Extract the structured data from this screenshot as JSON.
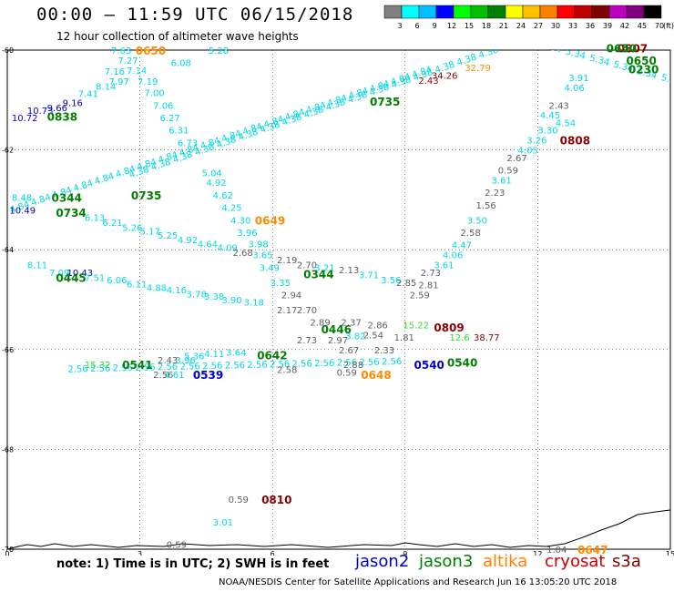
{
  "header": {
    "title": "00:00 – 11:59 UTC 06/15/2018",
    "subtitle": "12 hour collection of altimeter wave heights"
  },
  "legend": {
    "unit_label": "(ft)",
    "bins": [
      {
        "label": "3",
        "color": "#808080"
      },
      {
        "label": "6",
        "color": "#00ffff"
      },
      {
        "label": "9",
        "color": "#00c0ff"
      },
      {
        "label": "12",
        "color": "#0000ff"
      },
      {
        "label": "15",
        "color": "#00ff00"
      },
      {
        "label": "18",
        "color": "#00c000"
      },
      {
        "label": "21",
        "color": "#008000"
      },
      {
        "label": "24",
        "color": "#ffff00"
      },
      {
        "label": "27",
        "color": "#ffc000"
      },
      {
        "label": "30",
        "color": "#ff8000"
      },
      {
        "label": "33",
        "color": "#ff0000"
      },
      {
        "label": "36",
        "color": "#c00000"
      },
      {
        "label": "39",
        "color": "#800000"
      },
      {
        "label": "42",
        "color": "#c000c0"
      },
      {
        "label": "45",
        "color": "#800080"
      },
      {
        "label": "70",
        "color": "#000000"
      }
    ]
  },
  "axes": {
    "lon_ticks": [
      "0",
      "3",
      "6",
      "9",
      "12",
      "15"
    ],
    "lat_ticks": [
      "-60",
      "-62",
      "-64",
      "-66",
      "-68",
      "-70"
    ]
  },
  "note": "note:  1) Time is in UTC;  2) SWH is in feet",
  "satellites": [
    {
      "name": "jason2",
      "color": "#0000cc"
    },
    {
      "name": "jason3",
      "color": "#008000"
    },
    {
      "name": "altika",
      "color": "#ff8000"
    },
    {
      "name": "cryosat",
      "color": "#cc0000"
    },
    {
      "name": "s3a",
      "color": "#800000"
    }
  ],
  "credit": "NOAA/NESDIS Center for Satellite Applications and Research    Jun 16 13:05:20 UTC 2018",
  "map_data": {
    "colors": {
      "cyan": "#00d8e8",
      "gray": "#606060",
      "blue": "#0000cc",
      "green": "#008000",
      "orange": "#ff8c00",
      "darkred": "#8b0000",
      "lime": "#33dd33"
    },
    "passes": [
      {
        "text": "0650",
        "lon": 2.9,
        "lat": -60.0,
        "color": "orange"
      },
      {
        "text": "0838",
        "lon": 0.9,
        "lat": -61.32,
        "color": "green"
      },
      {
        "text": "0735",
        "lon": 8.2,
        "lat": -61.02,
        "color": "green"
      },
      {
        "text": "0735",
        "lon": 2.8,
        "lat": -62.9,
        "color": "green"
      },
      {
        "text": "0344",
        "lon": 1.0,
        "lat": -62.95,
        "color": "green"
      },
      {
        "text": "0734",
        "lon": 1.1,
        "lat": -63.25,
        "color": "green"
      },
      {
        "text": "0649",
        "lon": 5.6,
        "lat": -63.4,
        "color": "orange"
      },
      {
        "text": "0445",
        "lon": 1.1,
        "lat": -64.55,
        "color": "green"
      },
      {
        "text": "0344",
        "lon": 6.7,
        "lat": -64.48,
        "color": "green"
      },
      {
        "text": "0446",
        "lon": 7.1,
        "lat": -65.58,
        "color": "green"
      },
      {
        "text": "0809",
        "lon": 9.65,
        "lat": -65.55,
        "color": "darkred"
      },
      {
        "text": "0642",
        "lon": 5.65,
        "lat": -66.1,
        "color": "green"
      },
      {
        "text": "0541",
        "lon": 2.6,
        "lat": -66.3,
        "color": "green"
      },
      {
        "text": "0539",
        "lon": 4.2,
        "lat": -66.5,
        "color": "blue"
      },
      {
        "text": "0540",
        "lon": 9.2,
        "lat": -66.3,
        "color": "blue"
      },
      {
        "text": "0540",
        "lon": 9.95,
        "lat": -66.25,
        "color": "green"
      },
      {
        "text": "0648",
        "lon": 8.0,
        "lat": -66.5,
        "color": "orange"
      },
      {
        "text": "0810",
        "lon": 5.75,
        "lat": -69.0,
        "color": "darkred"
      },
      {
        "text": "0647",
        "lon": 12.9,
        "lat": -70.0,
        "color": "orange"
      },
      {
        "text": "0808",
        "lon": 12.5,
        "lat": -61.8,
        "color": "darkred"
      },
      {
        "text": "0807",
        "lon": 13.8,
        "lat": -59.95,
        "color": "darkred"
      },
      {
        "text": "0650",
        "lon": 13.55,
        "lat": -59.95,
        "color": "green"
      },
      {
        "text": "0650",
        "lon": 14.0,
        "lat": -60.2,
        "color": "green"
      },
      {
        "text": "0230",
        "lon": 14.05,
        "lat": -60.37,
        "color": "green"
      }
    ],
    "values": [
      {
        "text": "7.63",
        "lon": 2.35,
        "lat": -60.0,
        "color": "cyan"
      },
      {
        "text": "7.27",
        "lon": 2.5,
        "lat": -60.2,
        "color": "cyan"
      },
      {
        "text": "7.16",
        "lon": 2.2,
        "lat": -60.42,
        "color": "cyan"
      },
      {
        "text": "7.14",
        "lon": 2.7,
        "lat": -60.4,
        "color": "cyan"
      },
      {
        "text": "8.14",
        "lon": 2.0,
        "lat": -60.72,
        "color": "cyan"
      },
      {
        "text": "7.41",
        "lon": 1.6,
        "lat": -60.87,
        "color": "cyan"
      },
      {
        "text": "7.97",
        "lon": 2.3,
        "lat": -60.62,
        "color": "cyan"
      },
      {
        "text": "7.19",
        "lon": 2.95,
        "lat": -60.62,
        "color": "cyan"
      },
      {
        "text": "7.00",
        "lon": 3.1,
        "lat": -60.85,
        "color": "cyan"
      },
      {
        "text": "7.06",
        "lon": 3.3,
        "lat": -61.1,
        "color": "cyan"
      },
      {
        "text": "6.27",
        "lon": 3.45,
        "lat": -61.35,
        "color": "cyan"
      },
      {
        "text": "6.31",
        "lon": 3.65,
        "lat": -61.6,
        "color": "cyan"
      },
      {
        "text": "6.73",
        "lon": 3.85,
        "lat": -61.85,
        "color": "cyan"
      },
      {
        "text": "6.08",
        "lon": 3.7,
        "lat": -60.25,
        "color": "cyan"
      },
      {
        "text": "5.28",
        "lon": 4.55,
        "lat": -60.0,
        "color": "cyan"
      },
      {
        "text": "9.16",
        "lon": 1.25,
        "lat": -61.05,
        "color": "blue"
      },
      {
        "text": "9.66",
        "lon": 0.9,
        "lat": -61.15,
        "color": "blue"
      },
      {
        "text": "10.73",
        "lon": 0.45,
        "lat": -61.2,
        "color": "blue"
      },
      {
        "text": "10.72",
        "lon": 0.1,
        "lat": -61.35,
        "color": "blue"
      },
      {
        "text": "8.48",
        "lon": 0.1,
        "lat": -62.95,
        "color": "cyan"
      },
      {
        "text": "10.49",
        "lon": 0.05,
        "lat": -63.2,
        "color": "blue"
      },
      {
        "text": "6.13",
        "lon": 1.75,
        "lat": -63.35,
        "color": "cyan"
      },
      {
        "text": "6.21",
        "lon": 2.15,
        "lat": -63.45,
        "color": "cyan"
      },
      {
        "text": "5.26",
        "lon": 2.6,
        "lat": -63.55,
        "color": "cyan"
      },
      {
        "text": "5.17",
        "lon": 3.0,
        "lat": -63.62,
        "color": "cyan"
      },
      {
        "text": "5.25",
        "lon": 3.4,
        "lat": -63.7,
        "color": "cyan"
      },
      {
        "text": "4.92",
        "lon": 3.85,
        "lat": -63.8,
        "color": "cyan"
      },
      {
        "text": "4.64",
        "lon": 4.3,
        "lat": -63.88,
        "color": "cyan"
      },
      {
        "text": "4.09",
        "lon": 4.75,
        "lat": -63.95,
        "color": "cyan"
      },
      {
        "text": "2.68",
        "lon": 5.1,
        "lat": -64.05,
        "color": "gray"
      },
      {
        "text": "5.04",
        "lon": 4.4,
        "lat": -62.45,
        "color": "cyan"
      },
      {
        "text": "4.92",
        "lon": 4.5,
        "lat": -62.65,
        "color": "cyan"
      },
      {
        "text": "4.62",
        "lon": 4.65,
        "lat": -62.9,
        "color": "cyan"
      },
      {
        "text": "4.25",
        "lon": 4.85,
        "lat": -63.15,
        "color": "cyan"
      },
      {
        "text": "4.30",
        "lon": 5.05,
        "lat": -63.4,
        "color": "cyan"
      },
      {
        "text": "3.96",
        "lon": 5.2,
        "lat": -63.65,
        "color": "cyan"
      },
      {
        "text": "3.98",
        "lon": 5.45,
        "lat": -63.88,
        "color": "cyan"
      },
      {
        "text": "3.65",
        "lon": 5.55,
        "lat": -64.1,
        "color": "cyan"
      },
      {
        "text": "3.49",
        "lon": 5.7,
        "lat": -64.35,
        "color": "cyan"
      },
      {
        "text": "3.35",
        "lon": 5.95,
        "lat": -64.65,
        "color": "cyan"
      },
      {
        "text": "2.19",
        "lon": 6.1,
        "lat": -64.2,
        "color": "gray"
      },
      {
        "text": "2.70",
        "lon": 6.55,
        "lat": -64.3,
        "color": "gray"
      },
      {
        "text": "3.21",
        "lon": 6.95,
        "lat": -64.35,
        "color": "cyan"
      },
      {
        "text": "2.13",
        "lon": 7.5,
        "lat": -64.4,
        "color": "gray"
      },
      {
        "text": "3.71",
        "lon": 7.95,
        "lat": -64.5,
        "color": "cyan"
      },
      {
        "text": "3.56",
        "lon": 8.45,
        "lat": -64.6,
        "color": "cyan"
      },
      {
        "text": "2.94",
        "lon": 6.2,
        "lat": -64.9,
        "color": "gray"
      },
      {
        "text": "2.17",
        "lon": 6.1,
        "lat": -65.2,
        "color": "gray"
      },
      {
        "text": "2.70",
        "lon": 6.55,
        "lat": -65.2,
        "color": "gray"
      },
      {
        "text": "2.89",
        "lon": 6.85,
        "lat": -65.45,
        "color": "gray"
      },
      {
        "text": "2.73",
        "lon": 6.55,
        "lat": -65.8,
        "color": "gray"
      },
      {
        "text": "2.97",
        "lon": 7.25,
        "lat": -65.8,
        "color": "gray"
      },
      {
        "text": "3.82",
        "lon": 7.65,
        "lat": -65.72,
        "color": "cyan"
      },
      {
        "text": "2.54",
        "lon": 8.05,
        "lat": -65.7,
        "color": "gray"
      },
      {
        "text": "2.86",
        "lon": 8.15,
        "lat": -65.5,
        "color": "gray"
      },
      {
        "text": "2.37",
        "lon": 7.55,
        "lat": -65.45,
        "color": "gray"
      },
      {
        "text": "2.67",
        "lon": 7.5,
        "lat": -66.0,
        "color": "gray"
      },
      {
        "text": "2.33",
        "lon": 8.3,
        "lat": -66.0,
        "color": "gray"
      },
      {
        "text": "0.59",
        "lon": 7.45,
        "lat": -66.45,
        "color": "gray"
      },
      {
        "text": "2.88",
        "lon": 7.6,
        "lat": -66.3,
        "color": "gray"
      },
      {
        "text": "2.85",
        "lon": 8.8,
        "lat": -64.65,
        "color": "gray"
      },
      {
        "text": "2.73",
        "lon": 9.35,
        "lat": -64.45,
        "color": "gray"
      },
      {
        "text": "2.81",
        "lon": 9.3,
        "lat": -64.7,
        "color": "gray"
      },
      {
        "text": "2.59",
        "lon": 9.1,
        "lat": -64.9,
        "color": "gray"
      },
      {
        "text": "1.81",
        "lon": 8.75,
        "lat": -65.75,
        "color": "gray"
      },
      {
        "text": "15.22",
        "lon": 8.95,
        "lat": -65.5,
        "color": "lime"
      },
      {
        "text": "12.6",
        "lon": 10.0,
        "lat": -65.75,
        "color": "lime"
      },
      {
        "text": "38.77",
        "lon": 10.55,
        "lat": -65.75,
        "color": "darkred"
      },
      {
        "text": "8.11",
        "lon": 0.45,
        "lat": -64.3,
        "color": "cyan"
      },
      {
        "text": "7.09",
        "lon": 0.95,
        "lat": -64.45,
        "color": "cyan"
      },
      {
        "text": "10.43",
        "lon": 1.35,
        "lat": -64.45,
        "color": "blue"
      },
      {
        "text": "7.51",
        "lon": 1.75,
        "lat": -64.55,
        "color": "cyan"
      },
      {
        "text": "6.06",
        "lon": 2.25,
        "lat": -64.6,
        "color": "cyan"
      },
      {
        "text": "6.11",
        "lon": 2.7,
        "lat": -64.68,
        "color": "cyan"
      },
      {
        "text": "4.88",
        "lon": 3.15,
        "lat": -64.75,
        "color": "cyan"
      },
      {
        "text": "4.16",
        "lon": 3.6,
        "lat": -64.8,
        "color": "cyan"
      },
      {
        "text": "3.78",
        "lon": 4.05,
        "lat": -64.88,
        "color": "cyan"
      },
      {
        "text": "3.38",
        "lon": 4.45,
        "lat": -64.93,
        "color": "cyan"
      },
      {
        "text": "3.90",
        "lon": 4.85,
        "lat": -65.0,
        "color": "cyan"
      },
      {
        "text": "3.18",
        "lon": 5.35,
        "lat": -65.05,
        "color": "cyan"
      },
      {
        "text": "15.32",
        "lon": 1.75,
        "lat": -66.3,
        "color": "lime"
      },
      {
        "text": "2.43",
        "lon": 3.4,
        "lat": -66.2,
        "color": "gray"
      },
      {
        "text": "5.36",
        "lon": 4.0,
        "lat": -66.12,
        "color": "cyan"
      },
      {
        "text": "4.11",
        "lon": 4.45,
        "lat": -66.08,
        "color": "cyan"
      },
      {
        "text": "3.64",
        "lon": 4.95,
        "lat": -66.05,
        "color": "cyan"
      },
      {
        "text": "2.56",
        "lon": 3.3,
        "lat": -66.5,
        "color": "gray"
      },
      {
        "text": "3.96",
        "lon": 3.8,
        "lat": -66.2,
        "color": "cyan"
      },
      {
        "text": "4.61",
        "lon": 3.55,
        "lat": -66.5,
        "color": "cyan"
      },
      {
        "text": "2.58",
        "lon": 6.1,
        "lat": -66.4,
        "color": "gray"
      },
      {
        "text": "2.43",
        "lon": 9.3,
        "lat": -60.6,
        "color": "darkred"
      },
      {
        "text": "34.26",
        "lon": 9.6,
        "lat": -60.5,
        "color": "darkred"
      },
      {
        "text": "32.79",
        "lon": 10.35,
        "lat": -60.35,
        "color": "orange"
      },
      {
        "text": "2.43",
        "lon": 12.25,
        "lat": -61.1,
        "color": "gray"
      },
      {
        "text": "4.54",
        "lon": 12.4,
        "lat": -61.45,
        "color": "cyan"
      },
      {
        "text": "4.45",
        "lon": 12.05,
        "lat": -61.3,
        "color": "cyan"
      },
      {
        "text": "3.30",
        "lon": 12.0,
        "lat": -61.6,
        "color": "cyan"
      },
      {
        "text": "3.26",
        "lon": 11.75,
        "lat": -61.8,
        "color": "cyan"
      },
      {
        "text": "4.06",
        "lon": 12.6,
        "lat": -60.75,
        "color": "cyan"
      },
      {
        "text": "3.91",
        "lon": 12.7,
        "lat": -60.55,
        "color": "cyan"
      },
      {
        "text": "4.05",
        "lon": 11.55,
        "lat": -62.0,
        "color": "cyan"
      },
      {
        "text": "2.67",
        "lon": 11.3,
        "lat": -62.15,
        "color": "gray"
      },
      {
        "text": "0.59",
        "lon": 11.1,
        "lat": -62.4,
        "color": "gray"
      },
      {
        "text": "3.61",
        "lon": 10.95,
        "lat": -62.6,
        "color": "cyan"
      },
      {
        "text": "2.23",
        "lon": 10.8,
        "lat": -62.85,
        "color": "gray"
      },
      {
        "text": "1.56",
        "lon": 10.6,
        "lat": -63.1,
        "color": "gray"
      },
      {
        "text": "3.50",
        "lon": 10.4,
        "lat": -63.4,
        "color": "cyan"
      },
      {
        "text": "2.58",
        "lon": 10.25,
        "lat": -63.65,
        "color": "gray"
      },
      {
        "text": "4.47",
        "lon": 10.05,
        "lat": -63.9,
        "color": "cyan"
      },
      {
        "text": "4.06",
        "lon": 9.85,
        "lat": -64.1,
        "color": "cyan"
      },
      {
        "text": "3.61",
        "lon": 9.65,
        "lat": -64.3,
        "color": "cyan"
      },
      {
        "text": "0.59",
        "lon": 5.0,
        "lat": -69.0,
        "color": "gray"
      },
      {
        "text": "3.01",
        "lon": 4.65,
        "lat": -69.45,
        "color": "cyan"
      },
      {
        "text": "0.59",
        "lon": 3.6,
        "lat": -69.9,
        "color": "gray"
      },
      {
        "text": "1.04",
        "lon": 12.2,
        "lat": -70.0,
        "color": "gray"
      }
    ],
    "tracks": [
      {
        "lon1": 0.3,
        "lat1": -63.2,
        "lon2": 9.4,
        "lat2": -60.5,
        "color": "cyan",
        "label": "4.84"
      },
      {
        "lon1": 3.0,
        "lat1": -62.5,
        "lon2": 11.4,
        "lat2": -59.95,
        "color": "cyan",
        "label": "4.38"
      },
      {
        "lon1": 12.3,
        "lat1": -60.0,
        "lon2": 15.0,
        "lat2": -60.65,
        "color": "cyan",
        "label": "5.34"
      },
      {
        "lon1": 1.6,
        "lat1": -66.45,
        "lon2": 8.7,
        "lat2": -66.3,
        "color": "cyan",
        "label": "2.56"
      }
    ]
  }
}
